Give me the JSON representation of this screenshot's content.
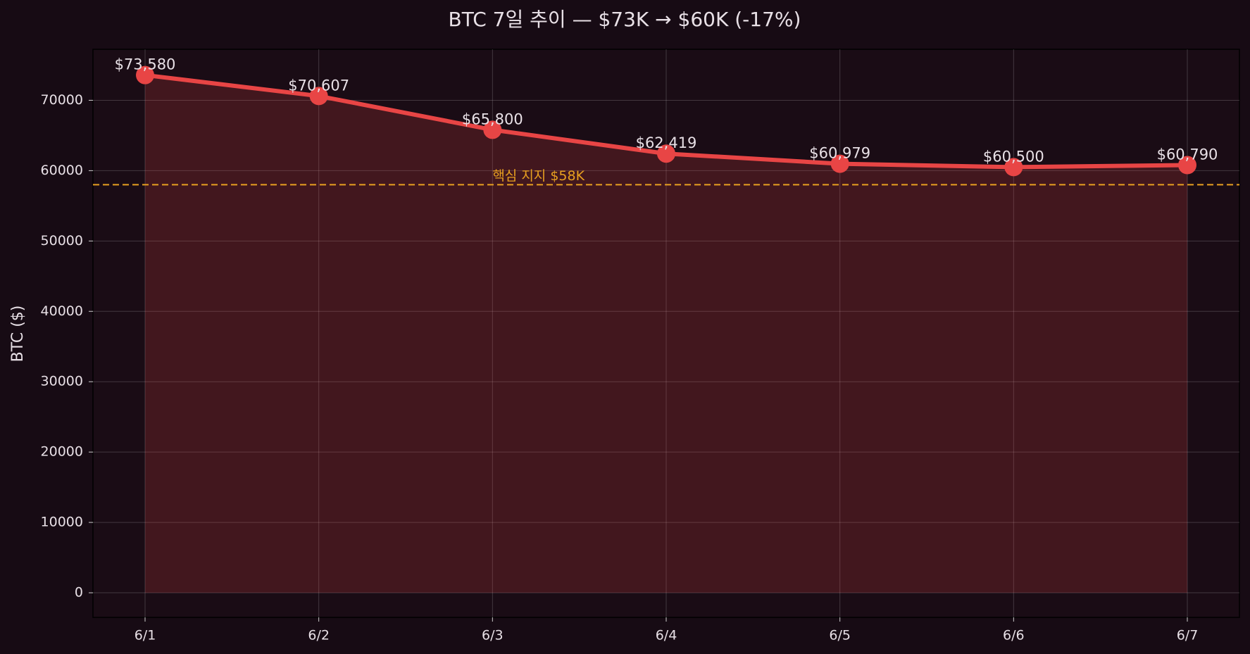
{
  "chart_data": {
    "type": "line",
    "title": "BTC 7일 추이 — $73K → $60K (-17%)",
    "y_label": "BTC ($)",
    "categories": [
      "6/1",
      "6/2",
      "6/3",
      "6/4",
      "6/5",
      "6/6",
      "6/7"
    ],
    "series": [
      {
        "name": "BTC",
        "color": "#e84545",
        "values": [
          73580,
          70607,
          65800,
          62419,
          60979,
          60500,
          60790
        ],
        "value_labels": [
          "$73,580",
          "$70,607",
          "$65,800",
          "$62,419",
          "$60,979",
          "$60,500",
          "$60,790"
        ]
      }
    ],
    "fill": true,
    "reference_line": {
      "value": 58000,
      "label": "핵심 지지 $58K",
      "color": "#e8a020"
    },
    "ylim": [
      -3500,
      77250
    ],
    "yticks": [
      0,
      10000,
      20000,
      30000,
      40000,
      50000,
      60000,
      70000
    ],
    "grid": true
  }
}
